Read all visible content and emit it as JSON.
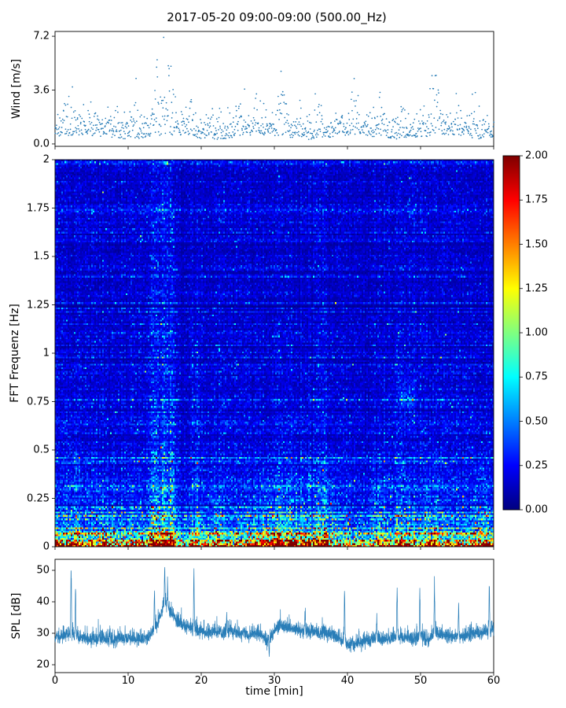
{
  "title": "2017-05-20 09:00-09:00 (500.00_Hz)",
  "chart_data": [
    {
      "type": "scatter",
      "name": "wind-speed",
      "ylabel": "Wind [m/s]",
      "xlim": [
        0,
        60
      ],
      "ylim": [
        -0.16,
        7.52
      ],
      "yticks": [
        0.0,
        3.6,
        7.2
      ],
      "ytick_labels": [
        "0.0",
        "3.6",
        "7.2"
      ],
      "marker_color": "#1f77b4",
      "n_points": 1100,
      "base_level": 0.45,
      "noise_sigma": 0.75,
      "max_value": 7.2,
      "gusts": [
        {
          "t": 2.0,
          "a": 0.6,
          "w": 0.7
        },
        {
          "t": 5.0,
          "a": 0.45,
          "w": 0.6
        },
        {
          "t": 8.0,
          "a": 0.5,
          "w": 0.8
        },
        {
          "t": 11.0,
          "a": 0.55,
          "w": 0.6
        },
        {
          "t": 14.0,
          "a": 1.4,
          "w": 0.7
        },
        {
          "t": 15.2,
          "a": 4.6,
          "w": 0.55
        },
        {
          "t": 16.0,
          "a": 1.2,
          "w": 0.5
        },
        {
          "t": 18.5,
          "a": 0.7,
          "w": 0.5
        },
        {
          "t": 22.0,
          "a": 0.9,
          "w": 0.8
        },
        {
          "t": 25.0,
          "a": 0.8,
          "w": 0.7
        },
        {
          "t": 27.5,
          "a": 1.0,
          "w": 0.6
        },
        {
          "t": 31.0,
          "a": 1.1,
          "w": 0.8
        },
        {
          "t": 33.5,
          "a": 0.8,
          "w": 0.5
        },
        {
          "t": 36.0,
          "a": 0.9,
          "w": 0.8
        },
        {
          "t": 41.0,
          "a": 1.3,
          "w": 0.7
        },
        {
          "t": 44.5,
          "a": 0.9,
          "w": 0.6
        },
        {
          "t": 47.5,
          "a": 0.8,
          "w": 0.5
        },
        {
          "t": 52.0,
          "a": 1.3,
          "w": 0.9
        },
        {
          "t": 55.0,
          "a": 0.7,
          "w": 0.5
        },
        {
          "t": 57.5,
          "a": 0.9,
          "w": 0.6
        }
      ]
    },
    {
      "type": "heatmap",
      "name": "fft-spectrogram",
      "ylabel": "FFT Frequenz [Hz]",
      "xlim": [
        0,
        60
      ],
      "ylim": [
        0,
        2
      ],
      "yticks": [
        0,
        0.25,
        0.5,
        0.75,
        1,
        1.25,
        1.5,
        1.75,
        2
      ],
      "ytick_labels": [
        "0",
        "0.25",
        "0.5",
        "0.75",
        "1",
        "1.25",
        "1.5",
        "1.75",
        "2"
      ],
      "clim": [
        0,
        2
      ],
      "colormap": "jet",
      "colorbar_ticks": [
        "0.00",
        "0.25",
        "0.50",
        "0.75",
        "1.00",
        "1.25",
        "1.50",
        "1.75",
        "2.00"
      ],
      "band_noise": 0.3,
      "freq_profile": [
        [
          0.0,
          1.95
        ],
        [
          0.01,
          1.8
        ],
        [
          0.02,
          1.35
        ],
        [
          0.04,
          1.0
        ],
        [
          0.06,
          0.75
        ],
        [
          0.09,
          0.55
        ],
        [
          0.13,
          0.42
        ],
        [
          0.2,
          0.33
        ],
        [
          0.3,
          0.27
        ],
        [
          0.45,
          0.22
        ],
        [
          0.7,
          0.19
        ],
        [
          1.0,
          0.17
        ],
        [
          1.5,
          0.16
        ],
        [
          2.0,
          0.15
        ]
      ],
      "events": [
        {
          "t": 2.5,
          "tw": 1.0,
          "fmax": 0.5,
          "amp": 0.35
        },
        {
          "t": 7.0,
          "tw": 1.5,
          "fmax": 0.15,
          "amp": 0.3
        },
        {
          "t": 13.5,
          "tw": 0.6,
          "fmax": 1.6,
          "amp": 0.45
        },
        {
          "t": 14.9,
          "tw": 1.1,
          "fmax": 2.0,
          "amp": 0.75
        },
        {
          "t": 16.2,
          "tw": 0.5,
          "fmax": 1.4,
          "amp": 0.4
        },
        {
          "t": 17.6,
          "tw": 0.8,
          "fmax": 2.0,
          "amp": -0.22
        },
        {
          "t": 19.2,
          "tw": 0.45,
          "fmax": 1.3,
          "amp": 0.5
        },
        {
          "t": 22.0,
          "tw": 1.0,
          "fmax": 0.2,
          "amp": 0.3
        },
        {
          "t": 29.0,
          "tw": 2.0,
          "fmax": 0.2,
          "amp": 0.45
        },
        {
          "t": 33.0,
          "tw": 3.0,
          "fmax": 0.3,
          "amp": 0.5
        },
        {
          "t": 37.0,
          "tw": 1.5,
          "fmax": 0.22,
          "amp": 0.4
        },
        {
          "t": 43.0,
          "tw": 3.0,
          "fmax": 2.0,
          "amp": -0.15
        },
        {
          "t": 44.0,
          "tw": 1.0,
          "fmax": 0.25,
          "amp": 0.3
        },
        {
          "t": 47.5,
          "tw": 1.0,
          "fmax": 0.35,
          "amp": 0.35
        },
        {
          "t": 48.0,
          "tw": 1.2,
          "fc": 0.78,
          "fw": 0.09,
          "amp": 0.9
        },
        {
          "t": 51.5,
          "tw": 1.0,
          "fmax": 0.4,
          "amp": 0.4
        },
        {
          "t": 58.5,
          "tw": 1.2,
          "fmax": 0.35,
          "amp": 0.4
        }
      ]
    },
    {
      "type": "line",
      "name": "spl",
      "ylabel": "SPL [dB]",
      "xlabel": "time [min]",
      "xlim": [
        0,
        60
      ],
      "ylim": [
        17.5,
        53.5
      ],
      "yticks": [
        20,
        30,
        40,
        50
      ],
      "ytick_labels": [
        "20",
        "30",
        "40",
        "50"
      ],
      "xticks": [
        0,
        10,
        20,
        30,
        40,
        50,
        60
      ],
      "xtick_labels": [
        "0",
        "10",
        "20",
        "30",
        "40",
        "50",
        "60"
      ],
      "line_color": "#1f77b4",
      "envelope_x": [
        0,
        1,
        2,
        3,
        4,
        5,
        6,
        7,
        8,
        9,
        10,
        11,
        12,
        13,
        14,
        15,
        16,
        17,
        18,
        19,
        20,
        21,
        22,
        23,
        24,
        25,
        26,
        27,
        28,
        29,
        30,
        31,
        32,
        33,
        34,
        35,
        36,
        37,
        38,
        39,
        40,
        41,
        42,
        43,
        44,
        45,
        46,
        47,
        48,
        49,
        50,
        51,
        52,
        53,
        54,
        55,
        56,
        57,
        58,
        59,
        60
      ],
      "envelope_y": [
        28.5,
        29,
        30,
        29,
        28,
        28,
        28,
        28.5,
        28,
        28,
        28.5,
        28,
        28,
        29,
        33,
        40,
        36,
        33,
        32,
        31,
        30.5,
        30,
        30.5,
        30,
        30.5,
        30,
        29.5,
        30,
        30,
        27,
        31,
        32,
        31.5,
        31,
        30.5,
        30.5,
        30,
        30,
        29.5,
        28,
        26.5,
        26.5,
        27,
        27.5,
        28,
        28,
        28.5,
        29,
        28.5,
        28,
        29,
        27.5,
        30,
        29.5,
        29,
        29,
        29,
        29.5,
        30,
        30.5,
        31
      ],
      "spikes": [
        {
          "t": 2.2,
          "v": 50
        },
        {
          "t": 2.8,
          "v": 44
        },
        {
          "t": 13.6,
          "v": 43
        },
        {
          "t": 15.0,
          "v": 50.5
        },
        {
          "t": 15.4,
          "v": 46
        },
        {
          "t": 19.0,
          "v": 50
        },
        {
          "t": 23.5,
          "v": 36
        },
        {
          "t": 29.3,
          "v": 24
        },
        {
          "t": 34.2,
          "v": 36
        },
        {
          "t": 39.6,
          "v": 44
        },
        {
          "t": 44.0,
          "v": 35
        },
        {
          "t": 46.8,
          "v": 44
        },
        {
          "t": 49.9,
          "v": 43
        },
        {
          "t": 51.9,
          "v": 45
        },
        {
          "t": 55.2,
          "v": 38
        },
        {
          "t": 59.4,
          "v": 44
        }
      ]
    }
  ]
}
